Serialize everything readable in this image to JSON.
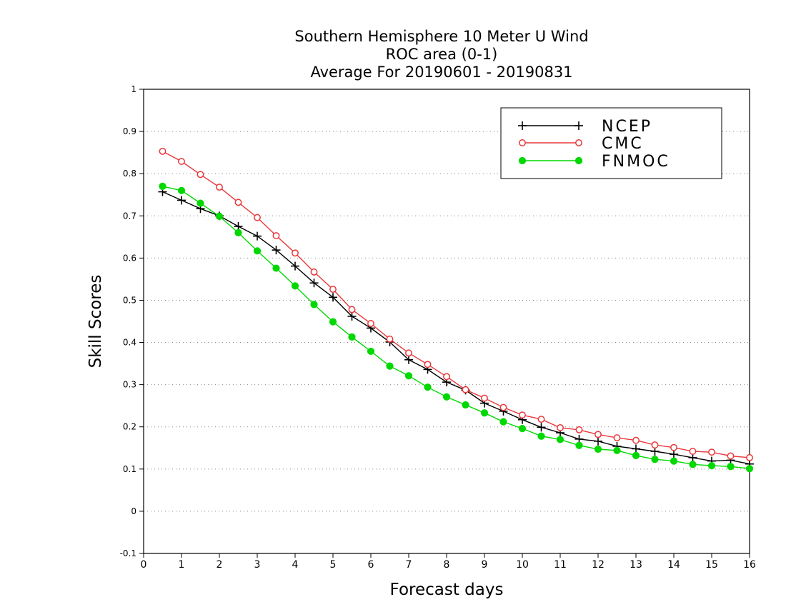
{
  "chart_data": {
    "type": "line",
    "title": [
      "Southern Hemisphere 10 Meter U Wind",
      "ROC area (0-1)",
      "Average For 20190601 - 20190831"
    ],
    "xlabel": "Forecast days",
    "ylabel": "Skill Scores",
    "xlim": [
      0,
      16
    ],
    "ylim": [
      -0.1,
      1
    ],
    "x_ticks": [
      0,
      1,
      2,
      3,
      4,
      5,
      6,
      7,
      8,
      9,
      10,
      11,
      12,
      13,
      14,
      15,
      16
    ],
    "x_tick_labels": [
      "0",
      "1",
      "2",
      "3",
      "4",
      "5",
      "6",
      "7",
      "8",
      "9",
      "10",
      "11",
      "12",
      "13",
      "14",
      "15",
      "16"
    ],
    "y_ticks": [
      -0.1,
      0,
      0.1,
      0.2,
      0.3,
      0.4,
      0.5,
      0.6,
      0.7,
      0.8,
      0.9,
      1
    ],
    "y_tick_labels": [
      "-0.1",
      "0",
      "0.1",
      "0.2",
      "0.3",
      "0.4",
      "0.5",
      "0.6",
      "0.7",
      "0.8",
      "0.9",
      "1"
    ],
    "grid": "horizontal dotted",
    "legend_position": "top-right",
    "x": [
      0.5,
      1,
      1.5,
      2,
      2.5,
      3,
      3.5,
      4,
      4.5,
      5,
      5.5,
      6,
      6.5,
      7,
      7.5,
      8,
      8.5,
      9,
      9.5,
      10,
      10.5,
      11,
      11.5,
      12,
      12.5,
      13,
      13.5,
      14,
      14.5,
      15,
      15.5,
      16
    ],
    "series": [
      {
        "name": "NCEP",
        "color": "#000000",
        "marker": "plus",
        "values": [
          0.757,
          0.737,
          0.717,
          0.7,
          0.675,
          0.652,
          0.619,
          0.581,
          0.541,
          0.507,
          0.462,
          0.434,
          0.401,
          0.359,
          0.336,
          0.306,
          0.287,
          0.256,
          0.237,
          0.217,
          0.199,
          0.186,
          0.171,
          0.166,
          0.154,
          0.148,
          0.142,
          0.135,
          0.127,
          0.119,
          0.121,
          0.112
        ]
      },
      {
        "name": "CMC",
        "color": "#e8383a",
        "marker": "open-circle",
        "values": [
          0.853,
          0.829,
          0.798,
          0.768,
          0.732,
          0.696,
          0.653,
          0.612,
          0.567,
          0.526,
          0.478,
          0.445,
          0.408,
          0.375,
          0.348,
          0.319,
          0.288,
          0.268,
          0.246,
          0.228,
          0.218,
          0.198,
          0.193,
          0.182,
          0.174,
          0.168,
          0.157,
          0.151,
          0.142,
          0.14,
          0.131,
          0.127
        ]
      },
      {
        "name": "FNMOC",
        "color": "#00d800",
        "marker": "filled-circle",
        "values": [
          0.77,
          0.76,
          0.73,
          0.699,
          0.66,
          0.617,
          0.576,
          0.534,
          0.49,
          0.449,
          0.413,
          0.379,
          0.344,
          0.321,
          0.294,
          0.271,
          0.252,
          0.233,
          0.212,
          0.196,
          0.178,
          0.17,
          0.156,
          0.147,
          0.144,
          0.132,
          0.123,
          0.119,
          0.111,
          0.108,
          0.106,
          0.101
        ]
      }
    ]
  }
}
